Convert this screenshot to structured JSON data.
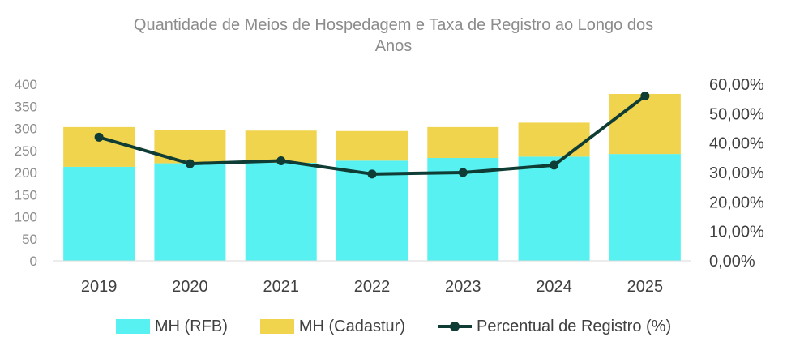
{
  "chart_data": {
    "type": "bar",
    "title": "Quantidade de Meios de Hospedagem e Taxa de Registro ao Longo dos Anos",
    "title_lines": [
      "Quantidade de Meios de Hospedagem e Taxa de Registro ao Longo dos",
      "Anos"
    ],
    "categories": [
      "2019",
      "2020",
      "2021",
      "2022",
      "2023",
      "2024",
      "2025"
    ],
    "stacked": true,
    "series": [
      {
        "name": "MH (RFB)",
        "kind": "bar",
        "axis": "left",
        "color": "#58F1F1",
        "values": [
          213,
          221,
          222,
          227,
          233,
          236,
          242
        ]
      },
      {
        "name": "MH (Cadastur)",
        "kind": "bar",
        "axis": "left",
        "color": "#F0D44D",
        "values": [
          90,
          75,
          73,
          67,
          70,
          77,
          136
        ]
      },
      {
        "name": "Percentual de Registro (%)",
        "kind": "line",
        "axis": "right",
        "color": "#0F3D35",
        "values": [
          42,
          33,
          34,
          29.5,
          30,
          32.5,
          56
        ]
      }
    ],
    "y_left": {
      "min": 0,
      "max": 400,
      "ticks": [
        "0",
        "50",
        "100",
        "150",
        "200",
        "250",
        "300",
        "350",
        "400"
      ]
    },
    "y_right": {
      "min": 0,
      "max": 60,
      "ticks": [
        "0,00%",
        "10,00%",
        "20,00%",
        "30,00%",
        "40,00%",
        "50,00%",
        "60,00%"
      ]
    },
    "grid": false,
    "legend_position": "bottom"
  }
}
